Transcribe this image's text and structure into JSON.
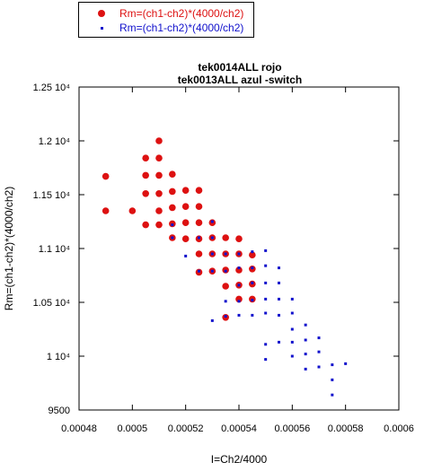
{
  "chart_data": {
    "type": "scatter",
    "title_lines": [
      "tek0014ALL rojo",
      "tek0013ALL azul -switch"
    ],
    "xlabel": "I=Ch2/4000",
    "ylabel": "Rm=(ch1-ch2)*(4000/ch2)",
    "xlim": [
      0.00048,
      0.0006
    ],
    "ylim": [
      9500,
      12500
    ],
    "x_ticks": [
      0.00048,
      0.0005,
      0.00052,
      0.00054,
      0.00056,
      0.00058,
      0.0006
    ],
    "x_tick_labels": [
      "0.00048",
      "0.0005",
      "0.00052",
      "0.00054",
      "0.00056",
      "0.00058",
      "0.0006"
    ],
    "y_ticks": [
      9500,
      10000,
      10500,
      11000,
      11500,
      12000,
      12500
    ],
    "y_tick_labels": [
      "9500",
      "1 10⁴",
      "1.05 10⁴",
      "1.1 10⁴",
      "1.15 10⁴",
      "1.2 10⁴",
      "1.25 10⁴"
    ],
    "grid": false,
    "legend_position": "top-left",
    "series": [
      {
        "name": "Rm=(ch1-ch2)*(4000/ch2)",
        "color": "#dd1111",
        "marker": "circle",
        "points": [
          [
            0.00049,
            11670
          ],
          [
            0.00049,
            11350
          ],
          [
            0.0005,
            11350
          ],
          [
            0.000505,
            11840
          ],
          [
            0.000505,
            11680
          ],
          [
            0.000505,
            11510
          ],
          [
            0.000505,
            11220
          ],
          [
            0.00051,
            12000
          ],
          [
            0.00051,
            11840
          ],
          [
            0.00051,
            11680
          ],
          [
            0.00051,
            11510
          ],
          [
            0.00051,
            11350
          ],
          [
            0.00051,
            11220
          ],
          [
            0.000515,
            11690
          ],
          [
            0.000515,
            11530
          ],
          [
            0.000515,
            11380
          ],
          [
            0.000515,
            11230
          ],
          [
            0.000515,
            11100
          ],
          [
            0.00052,
            11540
          ],
          [
            0.00052,
            11390
          ],
          [
            0.00052,
            11240
          ],
          [
            0.00052,
            11090
          ],
          [
            0.000525,
            11540
          ],
          [
            0.000525,
            11390
          ],
          [
            0.000525,
            11240
          ],
          [
            0.000525,
            11090
          ],
          [
            0.000525,
            10950
          ],
          [
            0.000525,
            10780
          ],
          [
            0.00053,
            11240
          ],
          [
            0.00053,
            11100
          ],
          [
            0.00053,
            10950
          ],
          [
            0.00053,
            10790
          ],
          [
            0.000535,
            11100
          ],
          [
            0.000535,
            10950
          ],
          [
            0.000535,
            10800
          ],
          [
            0.000535,
            10650
          ],
          [
            0.000535,
            10360
          ],
          [
            0.00054,
            11090
          ],
          [
            0.00054,
            10950
          ],
          [
            0.00054,
            10800
          ],
          [
            0.00054,
            10660
          ],
          [
            0.00054,
            10530
          ],
          [
            0.000545,
            10940
          ],
          [
            0.000545,
            10810
          ],
          [
            0.000545,
            10670
          ],
          [
            0.000545,
            10530
          ]
        ]
      },
      {
        "name": "Rm=(ch1-ch2)*(4000/ch2)",
        "color": "#1111cc",
        "marker": "square",
        "points": [
          [
            0.000515,
            11220
          ],
          [
            0.000515,
            11100
          ],
          [
            0.00052,
            10930
          ],
          [
            0.000525,
            11100
          ],
          [
            0.000525,
            10790
          ],
          [
            0.00053,
            11250
          ],
          [
            0.00053,
            11100
          ],
          [
            0.00053,
            10950
          ],
          [
            0.00053,
            10790
          ],
          [
            0.00053,
            10330
          ],
          [
            0.000535,
            10950
          ],
          [
            0.000535,
            10790
          ],
          [
            0.000535,
            10510
          ],
          [
            0.000535,
            10370
          ],
          [
            0.00054,
            10950
          ],
          [
            0.00054,
            10820
          ],
          [
            0.00054,
            10660
          ],
          [
            0.00054,
            10510
          ],
          [
            0.00054,
            10380
          ],
          [
            0.000545,
            10970
          ],
          [
            0.000545,
            10820
          ],
          [
            0.000545,
            10680
          ],
          [
            0.000545,
            10520
          ],
          [
            0.000545,
            10380
          ],
          [
            0.00055,
            10980
          ],
          [
            0.00055,
            10840
          ],
          [
            0.00055,
            10680
          ],
          [
            0.00055,
            10530
          ],
          [
            0.00055,
            10400
          ],
          [
            0.00055,
            10110
          ],
          [
            0.00055,
            9970
          ],
          [
            0.000555,
            10820
          ],
          [
            0.000555,
            10680
          ],
          [
            0.000555,
            10530
          ],
          [
            0.000555,
            10380
          ],
          [
            0.000555,
            10130
          ],
          [
            0.00056,
            10530
          ],
          [
            0.00056,
            10400
          ],
          [
            0.00056,
            10250
          ],
          [
            0.00056,
            10130
          ],
          [
            0.00056,
            10000
          ],
          [
            0.000565,
            10290
          ],
          [
            0.000565,
            10150
          ],
          [
            0.000565,
            10020
          ],
          [
            0.000565,
            9880
          ],
          [
            0.00057,
            10170
          ],
          [
            0.00057,
            10040
          ],
          [
            0.00057,
            9900
          ],
          [
            0.000575,
            9920
          ],
          [
            0.000575,
            9780
          ],
          [
            0.000575,
            9640
          ],
          [
            0.00058,
            9930
          ]
        ]
      }
    ]
  }
}
